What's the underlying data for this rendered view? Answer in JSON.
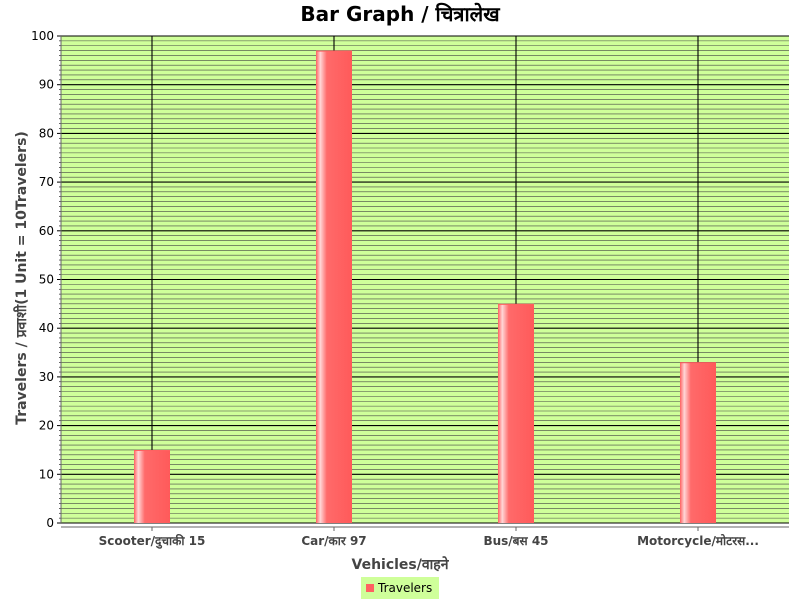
{
  "chart_data": {
    "type": "bar",
    "title": "Bar Graph / चित्रालेख",
    "xlabel": "Vehicles/वाहने",
    "ylabel": "Travelers / प्रवाशी(1 Unit = 10Travelers)",
    "categories": [
      "Scooter/दुचाकी 15",
      "Car/कार 97",
      "Bus/बस 45",
      "Motorcycle/मोटरस..."
    ],
    "series": [
      {
        "name": "Travelers",
        "values": [
          15,
          97,
          45,
          33
        ]
      }
    ],
    "ylim": [
      0,
      100
    ],
    "yticks": [
      0,
      10,
      20,
      30,
      40,
      50,
      60,
      70,
      80,
      90,
      100
    ],
    "grid": true,
    "legend": "bottom-center",
    "colors": {
      "plot_background": "#cfff9a",
      "bar": "#ff6161",
      "bar_highlight": "#ffd0d0",
      "grid_major": "#000000",
      "grid_minor": "#444444",
      "legend_background": "#cfff9a"
    }
  }
}
